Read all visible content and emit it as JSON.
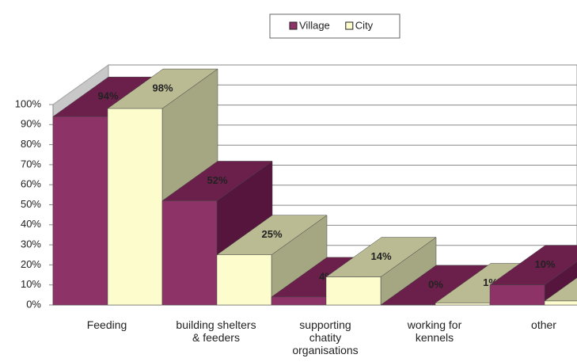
{
  "chart_data": {
    "type": "bar3d",
    "categories": [
      "Feeding",
      "building shelters\n& feeders",
      "supporting\nchatity\norganisations",
      "working for\nkennels",
      "other"
    ],
    "series": [
      {
        "name": "Village",
        "color": "#8e3368",
        "top_color": "#6b1f4b",
        "side_color": "#55153c",
        "values": [
          94,
          52,
          4,
          0,
          10
        ],
        "value_labels": [
          "94%",
          "52%",
          "4%",
          "0%",
          "10%"
        ]
      },
      {
        "name": "City",
        "color": "#fdfccc",
        "top_color": "#babb93",
        "side_color": "#a5a682",
        "values": [
          98,
          25,
          14,
          1,
          2
        ],
        "value_labels": [
          "98%",
          "25%",
          "14%",
          "1%",
          null
        ]
      }
    ],
    "ylim": [
      0,
      100
    ],
    "yticks": [
      {
        "value": 0,
        "label": "0%"
      },
      {
        "value": 10,
        "label": "10%"
      },
      {
        "value": 20,
        "label": "20%"
      },
      {
        "value": 30,
        "label": "30%"
      },
      {
        "value": 40,
        "label": "40%"
      },
      {
        "value": 50,
        "label": "50%"
      },
      {
        "value": 60,
        "label": "60%"
      },
      {
        "value": 70,
        "label": "70%"
      },
      {
        "value": 80,
        "label": "80%"
      },
      {
        "value": 90,
        "label": "90%"
      },
      {
        "value": 100,
        "label": "100%"
      }
    ],
    "grid": true,
    "legend": "top"
  }
}
